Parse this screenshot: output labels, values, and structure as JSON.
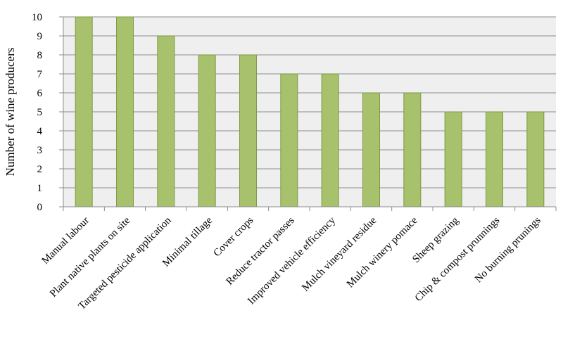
{
  "chart_data": {
    "type": "bar",
    "title": "",
    "xlabel": "",
    "ylabel": "Number of wine producers",
    "ylim": [
      0,
      10
    ],
    "yticks": [
      0,
      1,
      2,
      3,
      4,
      5,
      6,
      7,
      8,
      9,
      10
    ],
    "grid": true,
    "legend": "none",
    "categories": [
      "Manual labour",
      "Plant native plants on site",
      "Targeted pesticide application",
      "Minimal tillage",
      "Cover crops",
      "Reduce tractor passes",
      "Improved vehicle efficiency",
      "Mulch vineyard residue",
      "Mulch winery pomace",
      "Sheep grazing",
      "Chip & compost prunnings",
      "No burning prunings"
    ],
    "values": [
      10,
      10,
      9,
      8,
      8,
      7,
      7,
      6,
      6,
      5,
      5,
      5
    ],
    "colors": {
      "bar_fill": "#a7c16d",
      "bar_stroke": "#7d9a44",
      "plot_background": "#efefef",
      "grid": "#8c8c8c",
      "axis": "#8c8c8c"
    }
  }
}
